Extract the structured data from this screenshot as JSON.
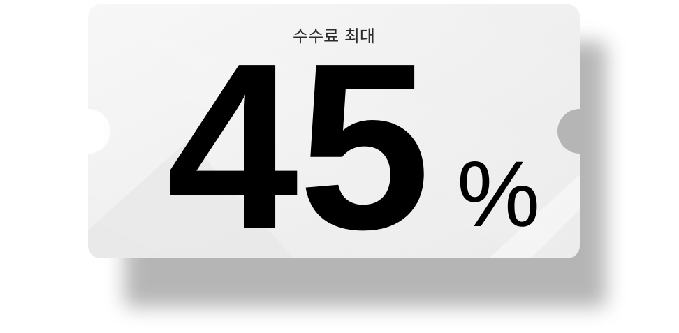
{
  "coupon": {
    "label": "수수료 최대",
    "value": "45",
    "unit": "%"
  },
  "colors": {
    "ticket_face": "#f1f1f1",
    "ticket_shadow": "#a9a9a9",
    "text": "#000000"
  }
}
